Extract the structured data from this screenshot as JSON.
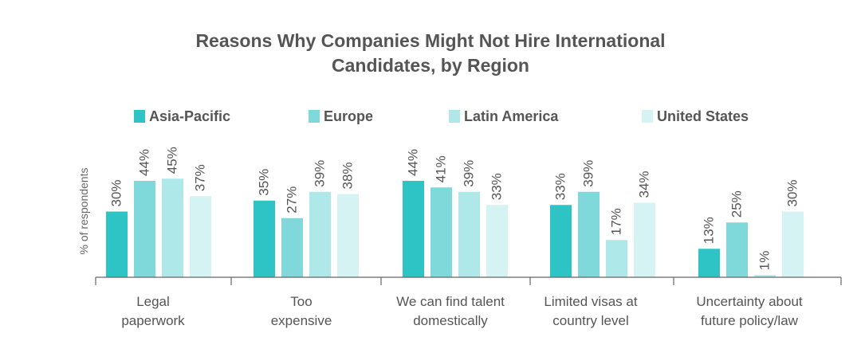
{
  "chart_data": {
    "type": "bar",
    "title_lines": [
      "Reasons Why Companies Might Not Hire International",
      "Candidates, by Region"
    ],
    "ylabel": "% of respondents",
    "xlabel": "",
    "ylim": [
      0,
      50
    ],
    "grid": false,
    "legend_position": "top",
    "categories": [
      [
        "Legal",
        "paperwork"
      ],
      [
        "Too",
        "expensive"
      ],
      [
        "We can find talent",
        "domestically"
      ],
      [
        "Limited visas at",
        "country level"
      ],
      [
        "Uncertainty about",
        "future policy/law"
      ]
    ],
    "series": [
      {
        "name": "Asia-Pacific",
        "color": "#2ec4c6",
        "values": [
          30,
          35,
          44,
          33,
          13
        ],
        "labels": [
          "30%",
          "35%",
          "44%",
          "33%",
          "13%"
        ]
      },
      {
        "name": "Europe",
        "color": "#7fd8da",
        "values": [
          44,
          27,
          41,
          39,
          25
        ],
        "labels": [
          "44%",
          "27%",
          "41%",
          "39%",
          "25%"
        ]
      },
      {
        "name": "Latin America",
        "color": "#aee8e9",
        "values": [
          45,
          39,
          39,
          17,
          1
        ],
        "labels": [
          "45%",
          "39%",
          "39%",
          "17%",
          "1%"
        ]
      },
      {
        "name": "United States",
        "color": "#d6f3f3",
        "values": [
          37,
          38,
          33,
          34,
          30
        ],
        "labels": [
          "37%",
          "38%",
          "33%",
          "34%",
          "30%"
        ]
      }
    ]
  }
}
